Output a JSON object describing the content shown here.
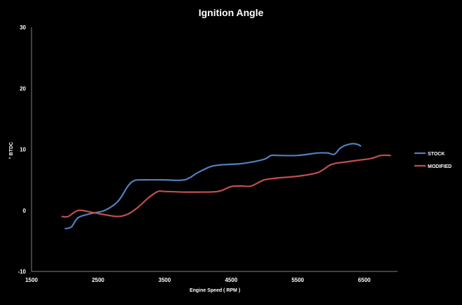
{
  "chart_data": {
    "type": "line",
    "title": "Ignition Angle",
    "xlabel": "Engine Speed ( RPM )",
    "ylabel": "° BTDC",
    "xlim": [
      1500,
      7000
    ],
    "ylim": [
      -10,
      30
    ],
    "x_ticks": [
      1500,
      2500,
      3500,
      4500,
      5500,
      6500
    ],
    "y_ticks": [
      -10,
      0,
      10,
      20,
      30
    ],
    "grid": false,
    "legend_position": "right",
    "series": [
      {
        "name": "STOCK",
        "color": "#4F81BD",
        "points": [
          [
            2000,
            -3
          ],
          [
            2100,
            -2.7
          ],
          [
            2200,
            -1.2
          ],
          [
            2400,
            -0.5
          ],
          [
            2600,
            0
          ],
          [
            2800,
            1.5
          ],
          [
            2950,
            4
          ],
          [
            3050,
            4.9
          ],
          [
            3200,
            5
          ],
          [
            3500,
            5
          ],
          [
            3800,
            5
          ],
          [
            4000,
            6.2
          ],
          [
            4200,
            7.2
          ],
          [
            4400,
            7.5
          ],
          [
            4600,
            7.6
          ],
          [
            4800,
            7.9
          ],
          [
            5000,
            8.4
          ],
          [
            5100,
            9
          ],
          [
            5200,
            9
          ],
          [
            5500,
            9
          ],
          [
            5800,
            9.4
          ],
          [
            5950,
            9.4
          ],
          [
            6050,
            9.2
          ],
          [
            6150,
            10.3
          ],
          [
            6300,
            10.9
          ],
          [
            6400,
            10.8
          ],
          [
            6450,
            10.5
          ]
        ]
      },
      {
        "name": "MODIFIED",
        "color": "#C0504D",
        "points": [
          [
            1950,
            -1
          ],
          [
            2050,
            -1
          ],
          [
            2200,
            0
          ],
          [
            2400,
            -0.3
          ],
          [
            2600,
            -0.7
          ],
          [
            2800,
            -1
          ],
          [
            2950,
            -0.6
          ],
          [
            3100,
            0.5
          ],
          [
            3250,
            2
          ],
          [
            3400,
            3.1
          ],
          [
            3500,
            3.1
          ],
          [
            3800,
            3
          ],
          [
            4000,
            3
          ],
          [
            4300,
            3.1
          ],
          [
            4500,
            3.9
          ],
          [
            4650,
            4
          ],
          [
            4800,
            4
          ],
          [
            5000,
            5
          ],
          [
            5200,
            5.3
          ],
          [
            5500,
            5.6
          ],
          [
            5800,
            6.2
          ],
          [
            6000,
            7.5
          ],
          [
            6200,
            7.9
          ],
          [
            6400,
            8.2
          ],
          [
            6600,
            8.5
          ],
          [
            6750,
            9
          ],
          [
            6900,
            9
          ]
        ]
      }
    ]
  }
}
